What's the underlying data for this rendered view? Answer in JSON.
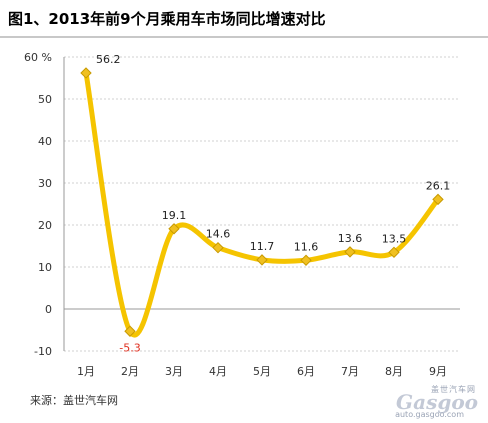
{
  "title": "图1、2013年前9个月乘用车市场同比增速对比",
  "source": "来源：盖世汽车网",
  "watermark": {
    "brand": "Gasgoo",
    "tagline": "盖世汽车网",
    "url": "auto.gasgoo.com"
  },
  "colors": {
    "line": "#f5c400",
    "marker": "#f0c020",
    "grid": "#d0d0d0",
    "axis": "#999999",
    "negative_label": "#e03020"
  },
  "chart_data": {
    "type": "line",
    "title": "",
    "xlabel": "",
    "ylabel": "",
    "y_unit": "%",
    "categories": [
      "1月",
      "2月",
      "3月",
      "4月",
      "5月",
      "6月",
      "7月",
      "8月",
      "9月"
    ],
    "values": [
      56.2,
      -5.3,
      19.1,
      14.6,
      11.7,
      11.6,
      13.6,
      13.5,
      26.1
    ],
    "value_labels": [
      "56.2",
      "-5.3",
      "19.1",
      "14.6",
      "11.7",
      "11.6",
      "13.6",
      "13.5",
      "26.1"
    ],
    "ylim": [
      -10,
      60
    ],
    "yticks": [
      60,
      50,
      40,
      30,
      20,
      10,
      0,
      -10
    ],
    "ytick_labels": [
      "60 %",
      "50",
      "40",
      "30",
      "20",
      "10",
      "0",
      "-10"
    ],
    "grid": true,
    "smooth": true
  }
}
